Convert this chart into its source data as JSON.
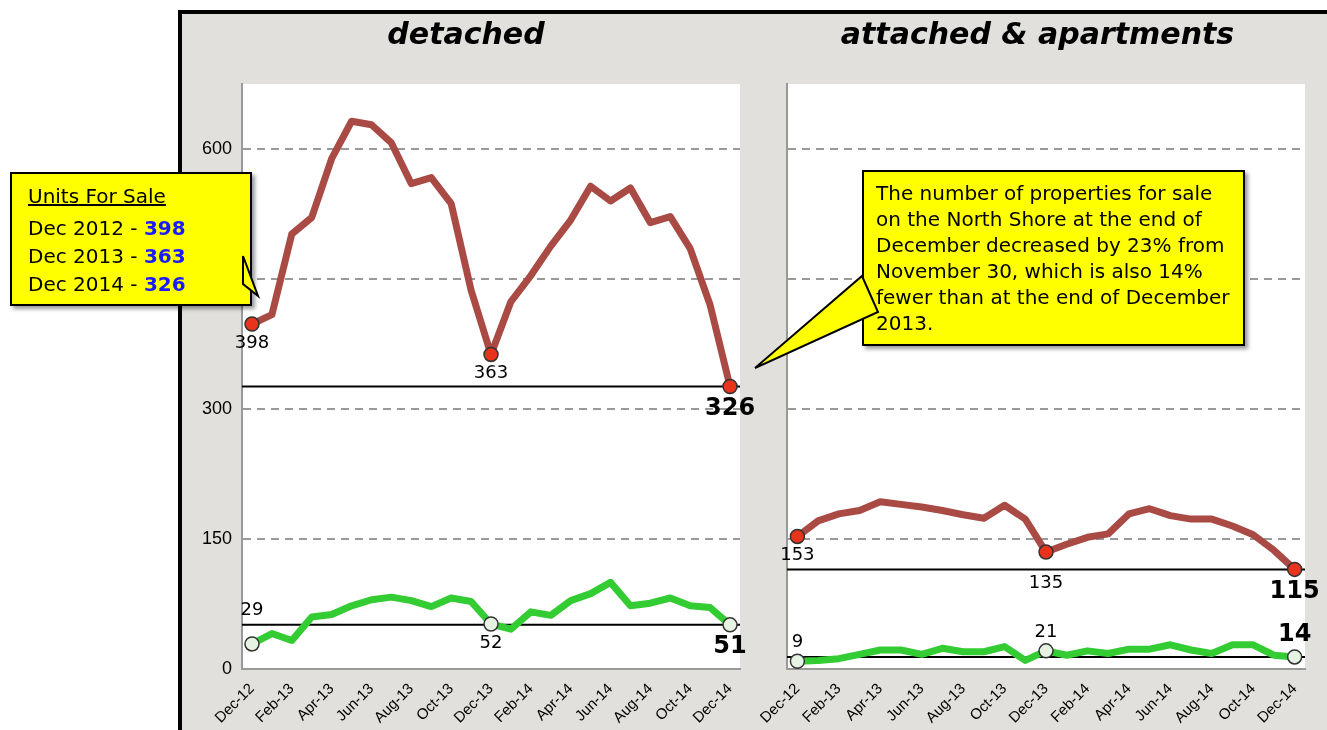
{
  "chart_data": [
    {
      "type": "line",
      "title": "detached",
      "categories": [
        "Dec-12",
        null,
        "Feb-13",
        null,
        "Apr-13",
        null,
        "Jun-13",
        null,
        "Aug-13",
        null,
        "Oct-13",
        null,
        "Dec-13",
        null,
        "Feb-14",
        null,
        "Apr-14",
        null,
        "Jun-14",
        null,
        "Aug-14",
        null,
        "Oct-14",
        null,
        "Dec-14"
      ],
      "series": [
        {
          "color": "#a94a45",
          "values": [
            398,
            409,
            502,
            521,
            589,
            632,
            628,
            607,
            560,
            567,
            537,
            437,
            363,
            424,
            454,
            488,
            518,
            557,
            540,
            555,
            515,
            522,
            485,
            420,
            326
          ],
          "value_labels": [
            "398",
            null,
            null,
            null,
            null,
            null,
            null,
            null,
            null,
            null,
            null,
            null,
            "363",
            null,
            null,
            null,
            null,
            null,
            null,
            null,
            null,
            null,
            null,
            null,
            "326"
          ]
        },
        {
          "color": "#33cc33",
          "values": [
            29,
            41,
            33,
            60,
            63,
            73,
            80,
            83,
            79,
            72,
            82,
            78,
            52,
            46,
            66,
            62,
            79,
            87,
            100,
            73,
            76,
            82,
            73,
            71,
            51
          ],
          "value_labels": [
            "29",
            null,
            null,
            null,
            null,
            null,
            null,
            null,
            null,
            null,
            null,
            null,
            "52",
            null,
            null,
            null,
            null,
            null,
            null,
            null,
            null,
            null,
            null,
            null,
            "51"
          ]
        }
      ],
      "ylim": [
        0,
        675
      ],
      "yticks": [
        0,
        150,
        300,
        {
          "value": 450,
          "label": null
        },
        600
      ],
      "grid": "y",
      "legend": false,
      "line_style": "solid",
      "ref_lines": [
        {
          "axis": "y",
          "value": 326,
          "color": "#000000"
        },
        {
          "axis": "y",
          "value": 51,
          "color": "#000000"
        }
      ],
      "annotations": [
        "Units For Sale",
        "Dec 2012 - 398",
        "Dec 2013 - 363",
        "Dec 2014 - 326",
        "The number of properties for sale on the North Shore at the end of December decreased by 23% from November 30, which is also 14% fewer than at the end of December 2013."
      ]
    },
    {
      "type": "line",
      "title": "attached & apartments",
      "categories": [
        "Dec-12",
        null,
        "Feb-13",
        null,
        "Apr-13",
        null,
        "Jun-13",
        null,
        "Aug-13",
        null,
        "Oct-13",
        null,
        "Dec-13",
        null,
        "Feb-14",
        null,
        "Apr-14",
        null,
        "Jun-14",
        null,
        "Aug-14",
        null,
        "Oct-14",
        null,
        "Dec-14"
      ],
      "series": [
        {
          "color": "#a94a45",
          "values": [
            153,
            171,
            179,
            183,
            193,
            190,
            187,
            183,
            178,
            174,
            189,
            173,
            135,
            144,
            152,
            156,
            179,
            185,
            177,
            173,
            173,
            165,
            155,
            137,
            115
          ],
          "value_labels": [
            "153",
            null,
            null,
            null,
            null,
            null,
            null,
            null,
            null,
            null,
            null,
            null,
            "135",
            null,
            null,
            null,
            null,
            null,
            null,
            null,
            null,
            null,
            null,
            null,
            "115"
          ]
        },
        {
          "color": "#33cc33",
          "values": [
            9,
            10,
            12,
            17,
            22,
            22,
            17,
            24,
            20,
            20,
            26,
            10,
            21,
            16,
            21,
            18,
            23,
            23,
            28,
            22,
            18,
            28,
            28,
            16,
            14
          ],
          "value_labels": [
            "9",
            null,
            null,
            null,
            null,
            null,
            null,
            null,
            null,
            null,
            null,
            null,
            "21",
            null,
            null,
            null,
            null,
            null,
            null,
            null,
            null,
            null,
            null,
            null,
            "14"
          ]
        }
      ],
      "ylim": [
        0,
        675
      ],
      "yticks": [
        0,
        150,
        300,
        450,
        600
      ],
      "grid": "y",
      "legend": false,
      "line_style": "solid",
      "tick_labels": "x",
      "ref_lines": [
        {
          "axis": "y",
          "value": 115,
          "color": "#000000"
        },
        {
          "axis": "y",
          "value": 14,
          "color": "#000000"
        }
      ]
    }
  ]
}
